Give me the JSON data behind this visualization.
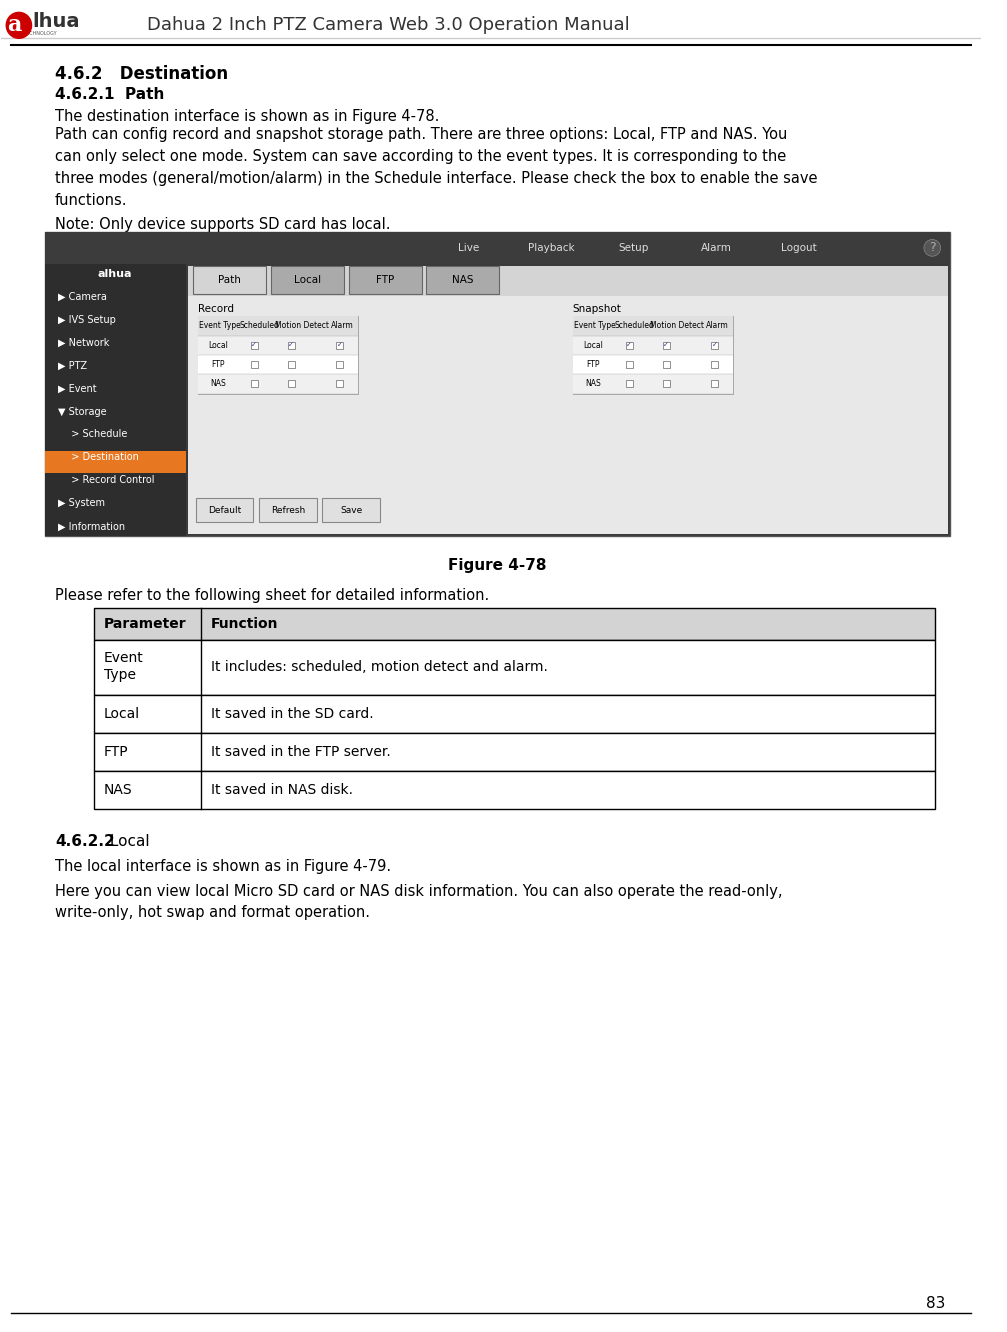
{
  "page_width": 10.07,
  "page_height": 13.32,
  "bg_color": "#ffffff",
  "header_title": "Dahua 2 Inch PTZ Camera Web 3.0 Operation Manual",
  "page_number": "83",
  "section_title": "4.6.2   Destination",
  "subsection1": "4.6.2.1  Path",
  "body_text1": "The destination interface is shown as in Figure 4-78.",
  "body_text2": "Path can config record and snapshot storage path. There are three options: Local, FTP and NAS. You\ncan only select one mode. System can save according to the event types. It is corresponding to the\nthree modes (general/motion/alarm) in the Schedule interface. Please check the box to enable the save\nfunctions.",
  "note_text": "Note: Only device supports SD card has local.",
  "figure_caption": "Figure 4-78",
  "refer_text": "Please refer to the following sheet for detailed information.",
  "table_header": [
    "Parameter",
    "Function"
  ],
  "table_rows": [
    [
      "Event\nType",
      "It includes: scheduled, motion detect and alarm."
    ],
    [
      "Local",
      "It saved in the SD card."
    ],
    [
      "FTP",
      "It saved in the FTP server."
    ],
    [
      "NAS",
      "It saved in NAS disk."
    ]
  ],
  "subsection2_bold": "4.6.2.2",
  "subsection2_normal": " Local",
  "body_text3": "The local interface is shown as in Figure 4-79.",
  "body_text4": "Here you can view local Micro SD card or NAS disk information. You can also operate the read-only,\nwrite-only, hot swap and format operation.",
  "header_line_color": "#000000",
  "table_header_bg": "#d3d3d3",
  "table_border_color": "#000000",
  "nav_bg": "#2d2d2d",
  "nav_active_bg": "#e87722",
  "nav_text_color": "#ffffff",
  "nav_items": [
    "Camera",
    "IVS Setup",
    "Network",
    "PTZ",
    "Event",
    "Storage",
    "  Schedule",
    "  Destination",
    "  Record Control",
    "System",
    "Information"
  ],
  "nav_active_item": "  Destination",
  "ui_bg": "#d4d4d4",
  "tab_items": [
    "Path",
    "Local",
    "FTP",
    "NAS"
  ],
  "tab_active": "Path"
}
